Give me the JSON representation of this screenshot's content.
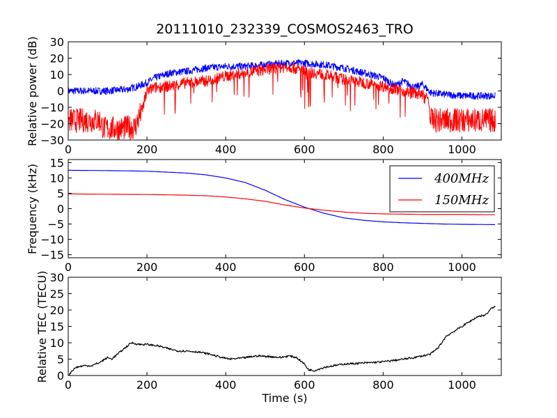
{
  "figure_title": "20111010_232339_COSMOS2463_TRO",
  "chart_data": [
    {
      "type": "line",
      "ylabel": "Relative power (dB)",
      "xlabel": "",
      "xlim": [
        0,
        1100
      ],
      "ylim": [
        -30,
        30
      ],
      "xticks": [
        "0",
        "200",
        "400",
        "600",
        "800",
        "1000"
      ],
      "yticks": [
        "30",
        "20",
        "10",
        "0",
        "−10",
        "−20",
        "−30"
      ],
      "colors": [
        "#0000ff",
        "#ff0000"
      ],
      "series": [
        {
          "values_x": [
            0,
            50,
            100,
            150,
            180,
            200,
            220,
            260,
            300,
            350,
            400,
            450,
            500,
            560,
            600,
            650,
            700,
            750,
            800,
            830,
            850,
            880,
            900,
            920,
            950,
            1000,
            1050,
            1085
          ],
          "values_y": [
            0,
            0,
            0,
            1,
            3,
            5,
            8,
            11,
            12,
            14,
            15,
            15,
            16,
            17,
            17,
            16,
            14,
            11,
            8,
            3,
            6,
            2,
            4,
            -1,
            -2,
            -3,
            -3,
            -3
          ]
        },
        {
          "values_x": [
            0,
            50,
            80,
            90,
            130,
            170,
            190,
            200,
            220,
            260,
            300,
            350,
            400,
            450,
            500,
            560,
            600,
            650,
            700,
            750,
            800,
            850,
            880,
            900,
            915,
            920,
            950,
            1000,
            1050,
            1085
          ],
          "values_y": [
            -18,
            -18,
            -18,
            -23,
            -23,
            -22,
            -10,
            0,
            2,
            3,
            5,
            6,
            9,
            11,
            13,
            15,
            12,
            10,
            7,
            5,
            3,
            0,
            -1,
            -3,
            -5,
            -18,
            -18,
            -18,
            -18,
            -18
          ]
        }
      ]
    },
    {
      "type": "line",
      "ylabel": "Frequency (kHz)",
      "xlabel": "",
      "xlim": [
        0,
        1100
      ],
      "ylim": [
        -16,
        16
      ],
      "xticks": [
        "0",
        "200",
        "400",
        "600",
        "800",
        "1000"
      ],
      "yticks": [
        "15",
        "10",
        "5",
        "0",
        "−5",
        "−10",
        "−15"
      ],
      "legend": "upper right",
      "series": [
        {
          "name": "400MHz",
          "color": "#0000ff",
          "values_x": [
            0,
            100,
            200,
            300,
            350,
            400,
            450,
            500,
            550,
            600,
            650,
            700,
            750,
            800,
            850,
            900,
            950,
            1000,
            1085
          ],
          "values_y": [
            12.5,
            12.4,
            12.2,
            11.6,
            11,
            10,
            8.5,
            6,
            3,
            0.5,
            -1.5,
            -3,
            -3.8,
            -4.3,
            -4.6,
            -4.8,
            -5,
            -5.1,
            -5.2
          ]
        },
        {
          "name": "150MHz",
          "color": "#ff0000",
          "values_x": [
            0,
            100,
            200,
            300,
            350,
            400,
            450,
            500,
            550,
            600,
            650,
            700,
            750,
            800,
            850,
            900,
            950,
            1000,
            1085
          ],
          "values_y": [
            4.8,
            4.7,
            4.6,
            4.4,
            4.2,
            3.8,
            3.2,
            2.4,
            1.2,
            0.2,
            -0.5,
            -1.1,
            -1.5,
            -1.7,
            -1.8,
            -1.9,
            -1.9,
            -1.9,
            -2
          ]
        }
      ]
    },
    {
      "type": "line",
      "ylabel": "Relative TEC (TECU)",
      "xlabel": "Time (s)",
      "xlim": [
        0,
        1100
      ],
      "ylim": [
        0,
        30
      ],
      "xticks": [
        "0",
        "200",
        "400",
        "600",
        "800",
        "1000"
      ],
      "yticks": [
        "30",
        "25",
        "20",
        "15",
        "10",
        "5",
        "0"
      ],
      "series": [
        {
          "color": "#000000",
          "values_x": [
            0,
            10,
            20,
            40,
            60,
            80,
            100,
            110,
            130,
            150,
            160,
            180,
            200,
            230,
            260,
            280,
            300,
            330,
            360,
            390,
            410,
            440,
            480,
            510,
            540,
            560,
            580,
            600,
            610,
            625,
            650,
            700,
            750,
            800,
            840,
            880,
            920,
            940,
            960,
            1000,
            1040,
            1060,
            1075,
            1085
          ],
          "values_y": [
            0,
            1.5,
            2.5,
            3,
            3,
            4,
            5.5,
            5,
            7,
            9,
            10,
            9.5,
            9.5,
            9,
            8,
            7.5,
            7.5,
            7.2,
            6.5,
            5.5,
            5,
            5.3,
            6,
            5.8,
            5.5,
            6,
            5.5,
            3.5,
            1.8,
            1.5,
            2.5,
            3.5,
            3.8,
            4.2,
            4.8,
            5.5,
            6.5,
            8.5,
            12,
            15,
            18,
            18.5,
            20.5,
            21
          ]
        }
      ]
    }
  ]
}
